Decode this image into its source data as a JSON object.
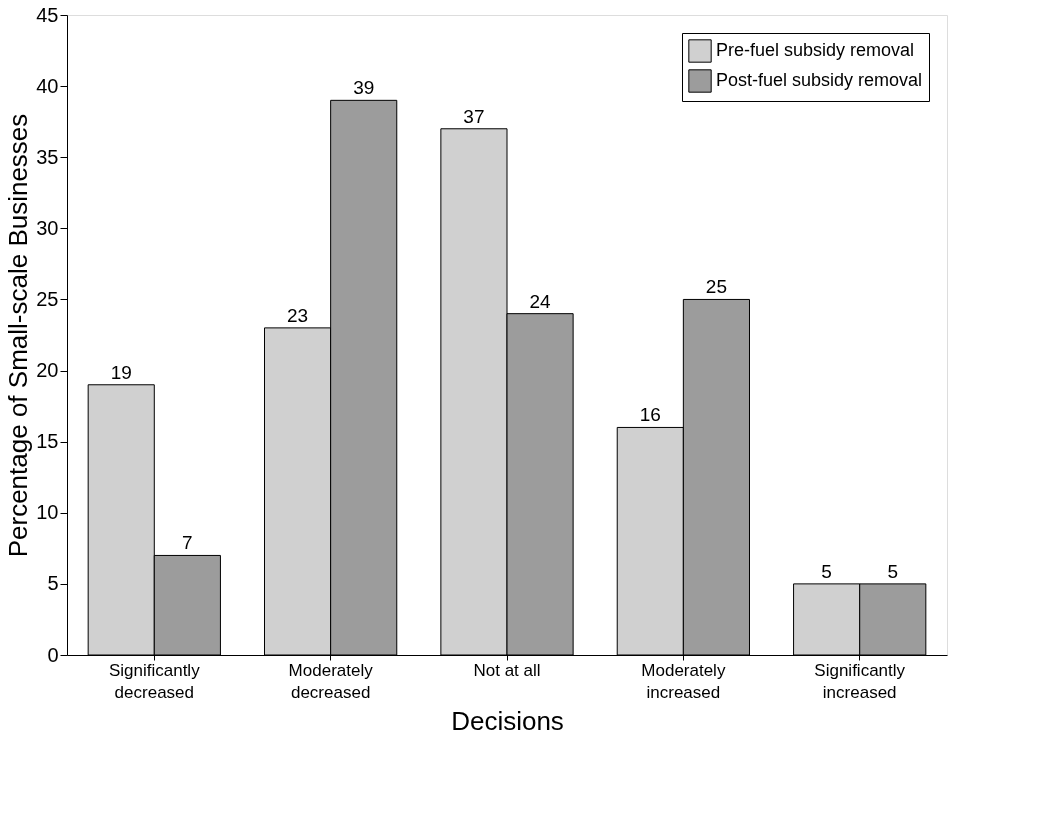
{
  "chart_data": {
    "type": "bar",
    "xlabel": "Decisions",
    "ylabel": "Percentage of Small-scale Businesses",
    "categories": [
      "Significantly\ndecreased",
      "Moderately\ndecreased",
      "Not at all",
      "Moderately\nincreased",
      "Significantly\nincreased"
    ],
    "series": [
      {
        "name": "Pre-fuel subsidy removal",
        "color": "#d0d0d0",
        "values": [
          19,
          23,
          37,
          16,
          5
        ]
      },
      {
        "name": "Post-fuel subsidy removal",
        "color": "#9c9c9c",
        "values": [
          7,
          39,
          24,
          25,
          5
        ]
      }
    ],
    "ylim": [
      0,
      45
    ],
    "yticks": [
      0,
      5,
      10,
      15,
      20,
      25,
      30,
      35,
      40,
      45
    ],
    "data_labels": true,
    "legend": "top right",
    "grid": false
  }
}
